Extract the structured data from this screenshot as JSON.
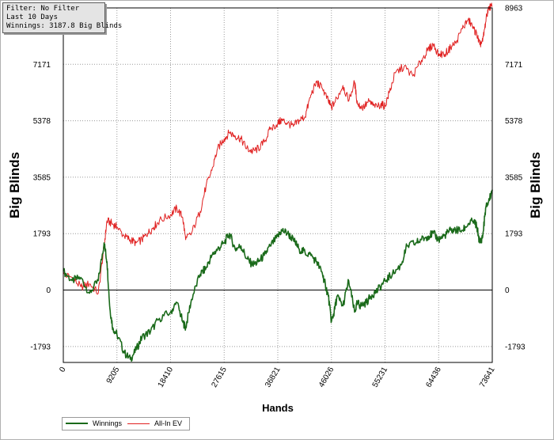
{
  "info_box": {
    "filter": "Filter: No Filter",
    "period": "Last  10 Days",
    "winnings": "Winnings: 3187.8 Big Blinds"
  },
  "colors": {
    "winnings": "#1a6a1a",
    "allin_ev": "#e02020",
    "grid": "#9a9a9a",
    "zero_line": "#000000"
  },
  "chart_data": {
    "type": "line",
    "title": "",
    "xlabel": "Hands",
    "ylabel": "Big Blinds",
    "xlim": [
      0,
      73641
    ],
    "ylim": [
      -2300,
      8963
    ],
    "x_ticks": [
      0,
      9205,
      18410,
      27615,
      36821,
      46026,
      55231,
      64436,
      73641
    ],
    "y_ticks": [
      -1793,
      0,
      1793,
      3585,
      5378,
      7171,
      8963
    ],
    "grid": true,
    "legend_position": "bottom-left",
    "series": [
      {
        "name": "Winnings",
        "color": "#1a6a1a",
        "x": [
          0,
          1500,
          3000,
          4500,
          6000,
          7000,
          7500,
          8000,
          8500,
          9205,
          10500,
          11500,
          12500,
          13500,
          15000,
          16500,
          18410,
          19500,
          20500,
          21000,
          22000,
          23500,
          24500,
          25500,
          26500,
          27615,
          28500,
          29500,
          30500,
          31500,
          32500,
          33500,
          34500,
          35500,
          36821,
          37500,
          38500,
          39500,
          40500,
          41500,
          42500,
          43500,
          44500,
          45000,
          45500,
          46026,
          46500,
          47000,
          48000,
          49000,
          50000,
          50500,
          51000,
          52000,
          53000,
          54000,
          55231,
          56500,
          58000,
          59000,
          60500,
          61500,
          62500,
          63500,
          64436,
          65500,
          66500,
          67500,
          68500,
          69500,
          70500,
          71000,
          71500,
          72000,
          72500,
          73000,
          73641
        ],
        "y": [
          600,
          300,
          400,
          -100,
          300,
          1500,
          900,
          -600,
          -1200,
          -1400,
          -2000,
          -2200,
          -1900,
          -1500,
          -1300,
          -900,
          -700,
          -400,
          -1000,
          -1200,
          -300,
          500,
          700,
          1100,
          1300,
          1500,
          1800,
          1300,
          1400,
          1000,
          800,
          900,
          1100,
          1400,
          1700,
          1900,
          1800,
          1600,
          1300,
          1200,
          1100,
          900,
          500,
          150,
          -200,
          -1000,
          -700,
          -200,
          -500,
          300,
          -700,
          -400,
          -500,
          -400,
          -150,
          0,
          300,
          500,
          800,
          1400,
          1500,
          1600,
          1700,
          1800,
          1600,
          1750,
          1900,
          1900,
          1900,
          2100,
          2200,
          2000,
          1500,
          1700,
          2600,
          2800,
          3187.8
        ]
      },
      {
        "name": "All-In EV",
        "color": "#e02020",
        "x": [
          0,
          1500,
          3000,
          4500,
          6000,
          7000,
          7500,
          8500,
          9205,
          10500,
          11500,
          12500,
          13500,
          14500,
          15500,
          16500,
          18410,
          19500,
          20500,
          21000,
          22000,
          23500,
          24500,
          25500,
          26500,
          27615,
          28500,
          29500,
          30500,
          31500,
          32500,
          33500,
          34500,
          35500,
          36821,
          37500,
          38500,
          39500,
          40500,
          41500,
          42500,
          43500,
          44500,
          45500,
          46026,
          47000,
          48000,
          49000,
          50000,
          50500,
          51500,
          52500,
          53500,
          54500,
          55231,
          56000,
          57000,
          58500,
          60000,
          61500,
          62500,
          63500,
          64436,
          65500,
          66500,
          67500,
          68500,
          69500,
          70500,
          71000,
          71500,
          72000,
          72500,
          73000,
          73641
        ],
        "y": [
          500,
          400,
          100,
          200,
          -100,
          1400,
          2200,
          2100,
          2000,
          1700,
          1600,
          1500,
          1600,
          1800,
          2000,
          2200,
          2400,
          2600,
          2300,
          1600,
          1800,
          2500,
          3300,
          3800,
          4500,
          4800,
          5000,
          4900,
          4800,
          4500,
          4400,
          4500,
          4700,
          5100,
          5300,
          5400,
          5300,
          5200,
          5400,
          5500,
          6200,
          6600,
          6400,
          6000,
          5800,
          6100,
          6500,
          6000,
          6600,
          5900,
          5800,
          6000,
          5800,
          5900,
          5850,
          6300,
          6900,
          7100,
          6800,
          7300,
          7600,
          7800,
          7500,
          7500,
          7700,
          7900,
          8300,
          8600,
          8300,
          8100,
          7800,
          7900,
          8500,
          9000,
          9000
        ]
      }
    ]
  }
}
